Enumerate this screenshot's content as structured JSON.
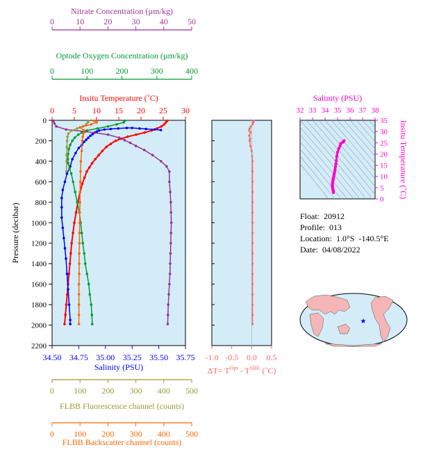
{
  "colors": {
    "nitrate": "#993399",
    "oxygen": "#009933",
    "temperature": "#ff0000",
    "salinity": "#0000ff",
    "fluorescence": "#999933",
    "backscatter": "#ff6600",
    "dt": "#ff6666",
    "ts": "#ff00cc",
    "panel_bg": "#d4ecf7"
  },
  "info": {
    "float": "Float:  20912",
    "profile": "Profile:  013",
    "location": "Location:  1.0°S  -140.5°E",
    "date": "Date:  04/08/2022"
  },
  "chart_data": [
    {
      "type": "line",
      "title": "",
      "ylabel": "Pressure (decibar)",
      "ylim": [
        2200,
        0
      ],
      "y_ticks": [
        0,
        200,
        400,
        600,
        800,
        1000,
        1200,
        1400,
        1600,
        1800,
        2000,
        2200
      ],
      "grid": false,
      "axes": {
        "nitrate": {
          "label": "Nitrate Concentration (µm/kg)",
          "range": [
            0,
            50
          ],
          "ticks": [
            0,
            10,
            20,
            30,
            40,
            50
          ]
        },
        "oxygen": {
          "label": "Optode Oxygen Concentration (µm/kg)",
          "range": [
            0,
            400
          ],
          "ticks": [
            0,
            100,
            200,
            300,
            400
          ]
        },
        "temperature": {
          "label": "Insitu Temperature (˚C)",
          "range": [
            0,
            30
          ],
          "ticks": [
            0,
            5,
            10,
            15,
            20,
            25,
            30
          ]
        },
        "salinity": {
          "label": "Salinity (PSU)",
          "range": [
            34.5,
            35.75
          ],
          "ticks": [
            "34.50",
            "34.75",
            "35.00",
            "35.25",
            "35.50",
            "35.75"
          ]
        },
        "fluorescence": {
          "label": "FLBB Fluorescence channel (counts)",
          "range": [
            0,
            500
          ],
          "ticks": [
            0,
            100,
            200,
            300,
            400,
            500
          ]
        },
        "backscatter": {
          "label": "FLBB Backscatter channel (counts)",
          "range": [
            0,
            500
          ],
          "ticks": [
            0,
            100,
            200,
            300,
            400,
            500
          ]
        }
      },
      "series": [
        {
          "axis": "temperature",
          "points": [
            [
              25.9,
              5
            ],
            [
              25.6,
              20
            ],
            [
              25.2,
              40
            ],
            [
              24.6,
              60
            ],
            [
              23.6,
              80
            ],
            [
              22.4,
              100
            ],
            [
              20.8,
              120
            ],
            [
              18.9,
              140
            ],
            [
              17.0,
              160
            ],
            [
              15.5,
              180
            ],
            [
              14.3,
              200
            ],
            [
              13.2,
              230
            ],
            [
              12.2,
              260
            ],
            [
              11.3,
              300
            ],
            [
              10.5,
              340
            ],
            [
              9.7,
              380
            ],
            [
              9.0,
              420
            ],
            [
              8.4,
              460
            ],
            [
              7.8,
              500
            ],
            [
              7.3,
              560
            ],
            [
              6.8,
              620
            ],
            [
              6.3,
              700
            ],
            [
              5.8,
              800
            ],
            [
              5.4,
              900
            ],
            [
              5.0,
              1000
            ],
            [
              4.7,
              1100
            ],
            [
              4.4,
              1200
            ],
            [
              4.2,
              1300
            ],
            [
              4.0,
              1400
            ],
            [
              3.8,
              1500
            ],
            [
              3.6,
              1600
            ],
            [
              3.4,
              1700
            ],
            [
              3.2,
              1800
            ],
            [
              3.0,
              1900
            ],
            [
              2.8,
              1990
            ]
          ]
        },
        {
          "axis": "salinity",
          "points": [
            [
              35.52,
              95
            ],
            [
              35.46,
              90
            ],
            [
              35.38,
              85
            ],
            [
              35.32,
              80
            ],
            [
              35.25,
              75
            ],
            [
              35.2,
              75
            ],
            [
              35.12,
              80
            ],
            [
              35.05,
              85
            ],
            [
              34.99,
              90
            ],
            [
              34.94,
              100
            ],
            [
              34.92,
              110
            ],
            [
              34.9,
              120
            ],
            [
              34.88,
              135
            ],
            [
              34.86,
              150
            ],
            [
              34.84,
              170
            ],
            [
              34.82,
              190
            ],
            [
              34.8,
              210
            ],
            [
              34.78,
              240
            ],
            [
              34.75,
              270
            ],
            [
              34.72,
              320
            ],
            [
              34.69,
              380
            ],
            [
              34.67,
              450
            ],
            [
              34.64,
              520
            ],
            [
              34.62,
              600
            ],
            [
              34.6,
              680
            ],
            [
              34.59,
              760
            ],
            [
              34.59,
              850
            ],
            [
              34.59,
              950
            ],
            [
              34.6,
              1050
            ],
            [
              34.61,
              1150
            ],
            [
              34.62,
              1250
            ],
            [
              34.63,
              1350
            ],
            [
              34.64,
              1500
            ],
            [
              34.65,
              1650
            ],
            [
              34.66,
              1800
            ],
            [
              34.67,
              1950
            ],
            [
              34.67,
              1990
            ]
          ]
        },
        {
          "axis": "nitrate",
          "points": [
            [
              0.5,
              5
            ],
            [
              0.8,
              30
            ],
            [
              1.5,
              60
            ],
            [
              5,
              90
            ],
            [
              12,
              110
            ],
            [
              20,
              140
            ],
            [
              24,
              170
            ],
            [
              26,
              195
            ],
            [
              28,
              220
            ],
            [
              30,
              250
            ],
            [
              33,
              290
            ],
            [
              36,
              340
            ],
            [
              39,
              400
            ],
            [
              41,
              450
            ],
            [
              42,
              500
            ],
            [
              42,
              600
            ],
            [
              42.3,
              700
            ],
            [
              42.5,
              800
            ],
            [
              42.6,
              900
            ],
            [
              42.7,
              1000
            ],
            [
              42.6,
              1100
            ],
            [
              42.5,
              1200
            ],
            [
              42.4,
              1300
            ],
            [
              42.3,
              1400
            ],
            [
              42.2,
              1500
            ],
            [
              42.0,
              1600
            ],
            [
              41.8,
              1700
            ],
            [
              41.6,
              1800
            ],
            [
              41.5,
              1900
            ],
            [
              41.4,
              1990
            ]
          ]
        },
        {
          "axis": "oxygen",
          "points": [
            [
              208,
              5
            ],
            [
              205,
              20
            ],
            [
              185,
              40
            ],
            [
              160,
              60
            ],
            [
              130,
              80
            ],
            [
              100,
              100
            ],
            [
              85,
              120
            ],
            [
              75,
              140
            ],
            [
              65,
              170
            ],
            [
              58,
              200
            ],
            [
              52,
              240
            ],
            [
              48,
              280
            ],
            [
              46,
              330
            ],
            [
              45,
              380
            ],
            [
              46,
              420
            ],
            [
              50,
              470
            ],
            [
              55,
              520
            ],
            [
              60,
              600
            ],
            [
              66,
              700
            ],
            [
              72,
              800
            ],
            [
              78,
              900
            ],
            [
              82,
              1000
            ],
            [
              85,
              1100
            ],
            [
              88,
              1200
            ],
            [
              92,
              1300
            ],
            [
              95,
              1400
            ],
            [
              100,
              1500
            ],
            [
              105,
              1600
            ],
            [
              108,
              1700
            ],
            [
              112,
              1800
            ],
            [
              114,
              1900
            ],
            [
              115,
              1990
            ]
          ]
        },
        {
          "axis": "fluorescence",
          "points": [
            [
              130,
              5
            ],
            [
              128,
              20
            ],
            [
              122,
              40
            ],
            [
              110,
              60
            ],
            [
              90,
              80
            ],
            [
              70,
              100
            ],
            [
              58,
              130
            ],
            [
              55,
              160
            ],
            [
              54,
              200
            ],
            [
              53,
              260
            ],
            [
              52,
              340
            ],
            [
              52,
              400
            ],
            [
              51,
              500
            ]
          ]
        },
        {
          "axis": "backscatter",
          "points": [
            [
              150,
              5
            ],
            [
              160,
              20
            ],
            [
              140,
              40
            ],
            [
              100,
              70
            ],
            [
              115,
              100
            ],
            [
              112,
              130
            ],
            [
              110,
              160
            ],
            [
              108,
              200
            ],
            [
              106,
              300
            ],
            [
              103,
              400
            ],
            [
              102,
              500
            ],
            [
              101,
              600
            ],
            [
              100,
              700
            ],
            [
              100,
              800
            ],
            [
              99,
              900
            ],
            [
              99,
              1000
            ],
            [
              98,
              1100
            ],
            [
              98,
              1200
            ],
            [
              97,
              1300
            ],
            [
              97,
              1400
            ],
            [
              97,
              1500
            ],
            [
              96,
              1600
            ],
            [
              96,
              1700
            ],
            [
              96,
              1800
            ],
            [
              96,
              1900
            ],
            [
              96,
              1990
            ]
          ]
        }
      ]
    },
    {
      "type": "line",
      "title": "",
      "xlabel": "ΔT= T^Opt - T^SBE (˚C)",
      "xlim": [
        -1.0,
        0.5
      ],
      "x_ticks": [
        "-1.0",
        "-0.5",
        "0.0",
        "0.5"
      ],
      "ylim": [
        2200,
        0
      ],
      "grid": false,
      "series": [
        {
          "name": "dt",
          "points": [
            [
              0.05,
              5
            ],
            [
              0.04,
              20
            ],
            [
              0.02,
              40
            ],
            [
              -0.02,
              60
            ],
            [
              -0.05,
              80
            ],
            [
              -0.06,
              100
            ],
            [
              -0.03,
              120
            ],
            [
              -0.06,
              150
            ],
            [
              -0.04,
              180
            ],
            [
              -0.05,
              200
            ],
            [
              -0.03,
              250
            ],
            [
              0.0,
              300
            ],
            [
              0.01,
              350
            ],
            [
              0.02,
              400
            ],
            [
              0.02,
              500
            ],
            [
              0.02,
              600
            ],
            [
              0.02,
              700
            ],
            [
              0.02,
              800
            ],
            [
              0.02,
              900
            ],
            [
              0.02,
              1000
            ],
            [
              0.02,
              1100
            ],
            [
              0.02,
              1200
            ],
            [
              0.02,
              1300
            ],
            [
              0.02,
              1400
            ],
            [
              0.02,
              1500
            ],
            [
              0.02,
              1600
            ],
            [
              0.02,
              1700
            ],
            [
              0.02,
              1800
            ],
            [
              0.02,
              1900
            ],
            [
              0.02,
              1990
            ]
          ]
        }
      ]
    },
    {
      "type": "scatter",
      "title": "Salinity (PSU)",
      "ylabel": "Insitu Temperature (˚C)",
      "xlim": [
        32,
        38
      ],
      "ylim": [
        0,
        35
      ],
      "x_ticks": [
        32,
        33,
        34,
        35,
        36,
        37,
        38
      ],
      "y_ticks": [
        0,
        5,
        10,
        15,
        20,
        25,
        30,
        35
      ],
      "grid": false,
      "series": [
        {
          "name": "ts",
          "points": [
            [
              35.52,
              25.9
            ],
            [
              35.5,
              25.6
            ],
            [
              35.4,
              25.2
            ],
            [
              35.25,
              24.6
            ],
            [
              35.2,
              23.6
            ],
            [
              35.1,
              22.4
            ],
            [
              35.0,
              20.8
            ],
            [
              34.94,
              18.9
            ],
            [
              34.9,
              17.0
            ],
            [
              34.86,
              15.5
            ],
            [
              34.83,
              14.3
            ],
            [
              34.8,
              13.2
            ],
            [
              34.77,
              12.2
            ],
            [
              34.74,
              11.3
            ],
            [
              34.71,
              10.5
            ],
            [
              34.68,
              9.7
            ],
            [
              34.66,
              9.0
            ],
            [
              34.64,
              8.4
            ],
            [
              34.62,
              7.8
            ],
            [
              34.6,
              7.3
            ],
            [
              34.59,
              6.8
            ],
            [
              34.59,
              6.3
            ],
            [
              34.59,
              5.8
            ],
            [
              34.59,
              5.4
            ],
            [
              34.6,
              5.0
            ],
            [
              34.61,
              4.7
            ],
            [
              34.62,
              4.4
            ],
            [
              34.63,
              4.2
            ],
            [
              34.64,
              4.0
            ],
            [
              34.65,
              3.6
            ],
            [
              34.66,
              3.2
            ],
            [
              34.67,
              2.8
            ]
          ]
        }
      ]
    }
  ]
}
